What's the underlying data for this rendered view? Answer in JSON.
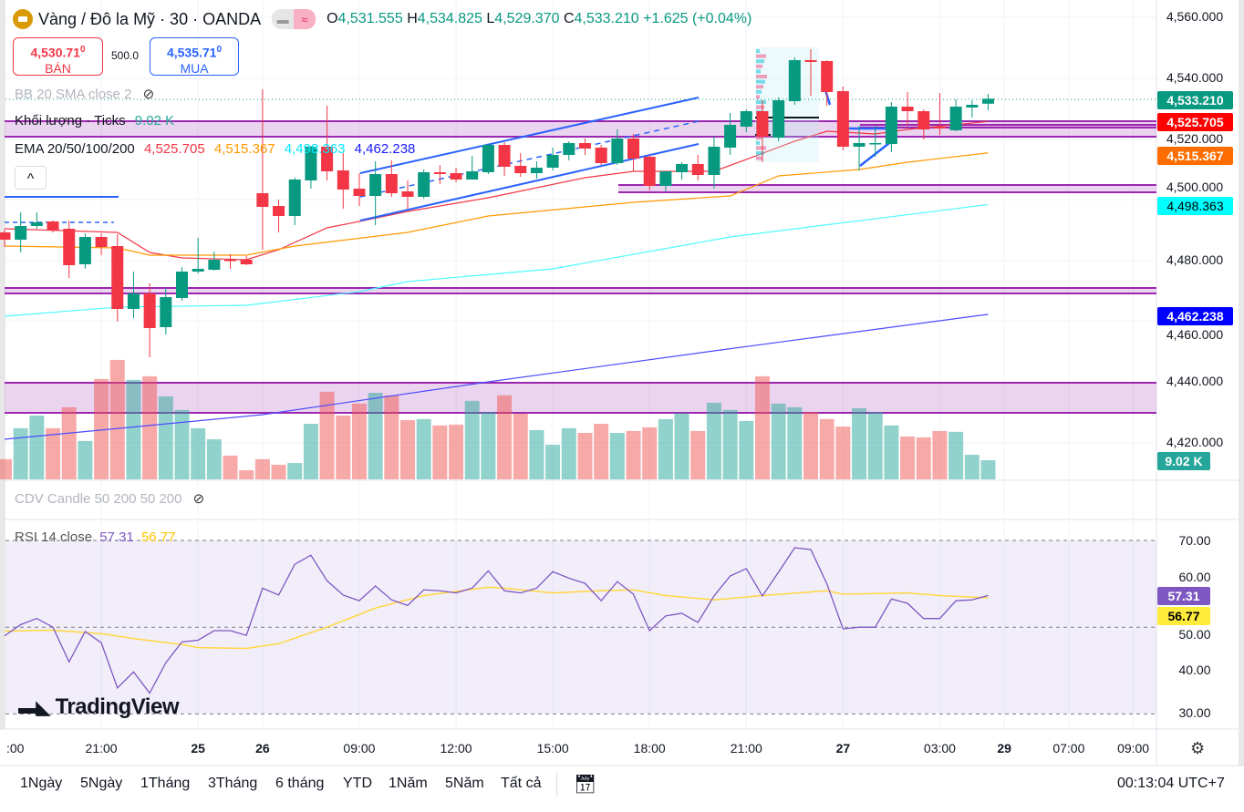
{
  "header": {
    "symbol_title": "Vàng / Đô la Mỹ · 30 · OANDA",
    "toggle_icon": "≈",
    "ohlc": {
      "o_label": "O",
      "o": "4,531.555",
      "h_label": "H",
      "h": "4,534.825",
      "l_label": "L",
      "l": "4,529.370",
      "c_label": "C",
      "c": "4,533.210",
      "change": "+1.625 (+0.04%)"
    }
  },
  "trade": {
    "sell_price": "4,530.71",
    "sell_sup": "0",
    "sell_label": "BÁN",
    "spread": "500.0",
    "buy_price": "4,535.71",
    "buy_sup": "0",
    "buy_label": "MUA"
  },
  "legend": {
    "bb": "BB 20 SMA close 2",
    "volume_label": "Khối lượng · Ticks",
    "volume_value": "9.02 K",
    "ema_label": "EMA 20/50/100/200",
    "ema_values": [
      "4,525.705",
      "4,515.367",
      "4,498.363",
      "4,462.238"
    ],
    "cdv": "CDV Candle 50 200 50 200",
    "rsi_label": "RSI 14 close",
    "rsi_value": "57.31",
    "rsi_signal": "56.77",
    "collapse_icon": "^"
  },
  "price_axis": {
    "ticks": [
      "4,560.000",
      "4,540.000",
      "4,520.000",
      "4,500.000",
      "4,480.000",
      "4,460.000",
      "4,440.000",
      "4,420.000"
    ],
    "tags": [
      {
        "label": "4,533.210",
        "color": "#089981",
        "text": "#ffffff"
      },
      {
        "label": "4,525.705",
        "color": "#ff0000",
        "text": "#ffffff"
      },
      {
        "label": "4,515.367",
        "color": "#ff6d00",
        "text": "#ffffff"
      },
      {
        "label": "4,498.363",
        "color": "#00ffff",
        "text": "#000000"
      },
      {
        "label": "4,462.238",
        "color": "#0000ff",
        "text": "#ffffff"
      },
      {
        "label": "9.02 K",
        "color": "#26a69a",
        "text": "#ffffff"
      }
    ]
  },
  "rsi_axis": {
    "ticks": [
      "70.00",
      "60.00",
      "50.00",
      "40.00",
      "30.00"
    ],
    "tags": [
      {
        "label": "57.31",
        "color": "#7e57c2",
        "text": "#ffffff"
      },
      {
        "label": "56.77",
        "color": "#ffeb3b",
        "text": "#000000"
      }
    ]
  },
  "time_axis": [
    {
      "label": ":00",
      "bar": -0.5
    },
    {
      "label": "21:00",
      "bar": 6
    },
    {
      "label": "25",
      "bar": 12
    },
    {
      "label": "26",
      "bar": 16
    },
    {
      "label": "09:00",
      "bar": 22
    },
    {
      "label": "12:00",
      "bar": 28
    },
    {
      "label": "15:00",
      "bar": 34
    },
    {
      "label": "18:00",
      "bar": 40
    },
    {
      "label": "21:00",
      "bar": 46
    },
    {
      "label": "27",
      "bar": 52
    },
    {
      "label": "03:00",
      "bar": 58
    },
    {
      "label": "29",
      "bar": 62
    },
    {
      "label": "07:00",
      "bar": 66
    },
    {
      "label": "09:00",
      "bar": 70
    }
  ],
  "toolbar": {
    "ranges": [
      "1Ngày",
      "5Ngày",
      "1Tháng",
      "3Tháng",
      "6 tháng",
      "YTD",
      "1Năm",
      "5Năm",
      "Tất cả"
    ],
    "clock": "00:13:04 UTC+7"
  },
  "watermark": "TradingView",
  "chart_data": {
    "type": "candlestick",
    "interval": "30",
    "ylim": [
      4415,
      4562
    ],
    "up_color": "#089981",
    "down_color": "#f23645",
    "candles_ohlc": [
      [
        4489.2,
        4490.1,
        4484.4,
        4486.8
      ],
      [
        4486.8,
        4495.8,
        4482.6,
        4491.3
      ],
      [
        4491.3,
        4495.8,
        4490.4,
        4492.5
      ],
      [
        4492.8,
        4493.1,
        4489.2,
        4489.8
      ],
      [
        4490.4,
        4493.1,
        4474.2,
        4478.4
      ],
      [
        4478.7,
        4488.9,
        4477.2,
        4487.7
      ],
      [
        4487.7,
        4488.9,
        4481.7,
        4484.4
      ],
      [
        4484.7,
        4488.6,
        4459.8,
        4464.0
      ],
      [
        4464.0,
        4476.3,
        4461.0,
        4469.1
      ],
      [
        4469.1,
        4472.4,
        4448.1,
        4457.7
      ],
      [
        4458.0,
        4470.9,
        4455.6,
        4467.9
      ],
      [
        4467.6,
        4477.8,
        4466.7,
        4476.3
      ],
      [
        4476.3,
        4487.4,
        4475.7,
        4477.2
      ],
      [
        4476.9,
        4482.9,
        4476.6,
        4480.2
      ],
      [
        4480.2,
        4482.0,
        4477.2,
        4479.9
      ],
      [
        4480.2,
        4481.4,
        4478.4,
        4478.7
      ],
      [
        4502.1,
        4536.3,
        4483.5,
        4497.6
      ],
      [
        4497.9,
        4500.0,
        4489.2,
        4494.6
      ],
      [
        4494.6,
        4507.2,
        4491.6,
        4506.6
      ],
      [
        4506.3,
        4517.7,
        4503.6,
        4517.4
      ],
      [
        4517.4,
        4530.9,
        4506.3,
        4509.3
      ],
      [
        4509.6,
        4515.3,
        4497.0,
        4503.3
      ],
      [
        4503.6,
        4508.7,
        4497.9,
        4501.2
      ],
      [
        4501.2,
        4512.6,
        4491.6,
        4508.4
      ],
      [
        4508.4,
        4512.9,
        4500.9,
        4502.1
      ],
      [
        4502.7,
        4506.3,
        4497.0,
        4500.9
      ],
      [
        4500.9,
        4509.9,
        4500.3,
        4509.0
      ],
      [
        4509.0,
        4511.4,
        4505.1,
        4508.4
      ],
      [
        4508.7,
        4510.5,
        4505.7,
        4506.6
      ],
      [
        4506.6,
        4514.4,
        4506.6,
        4509.3
      ],
      [
        4509.0,
        4518.3,
        4508.4,
        4518.0
      ],
      [
        4518.0,
        4518.9,
        4507.8,
        4510.8
      ],
      [
        4511.1,
        4515.3,
        4507.5,
        4508.7
      ],
      [
        4508.7,
        4512.6,
        4506.9,
        4510.5
      ],
      [
        4510.5,
        4517.1,
        4509.6,
        4514.7
      ],
      [
        4514.7,
        4519.2,
        4512.9,
        4518.6
      ],
      [
        4518.6,
        4520.1,
        4514.7,
        4516.8
      ],
      [
        4517.1,
        4518.0,
        4511.4,
        4512.0
      ],
      [
        4512.0,
        4523.1,
        4511.4,
        4520.1
      ],
      [
        4520.1,
        4521.6,
        4509.3,
        4513.5
      ],
      [
        4514.1,
        4514.7,
        4503.0,
        4504.5
      ],
      [
        4504.5,
        4509.3,
        4502.7,
        4509.3
      ],
      [
        4509.0,
        4512.3,
        4506.6,
        4511.7
      ],
      [
        4511.7,
        4514.7,
        4506.3,
        4508.1
      ],
      [
        4508.1,
        4520.7,
        4503.6,
        4517.4
      ],
      [
        4517.1,
        4528.5,
        4514.7,
        4524.6
      ],
      [
        4524.0,
        4529.7,
        4522.2,
        4529.1
      ],
      [
        4529.1,
        4532.7,
        4512.3,
        4520.7
      ],
      [
        4520.4,
        4533.6,
        4519.2,
        4532.7
      ],
      [
        4532.4,
        4546.8,
        4531.2,
        4545.9
      ],
      [
        4545.9,
        4549.5,
        4534.2,
        4545.3
      ],
      [
        4545.6,
        4545.9,
        4530.9,
        4535.4
      ],
      [
        4535.7,
        4537.2,
        4516.2,
        4517.4
      ],
      [
        4517.4,
        4524.3,
        4509.6,
        4518.6
      ],
      [
        4518.3,
        4524.3,
        4514.1,
        4518.6
      ],
      [
        4518.3,
        4532.1,
        4515.6,
        4530.6
      ],
      [
        4530.6,
        4535.4,
        4524.3,
        4529.1
      ],
      [
        4529.1,
        4529.7,
        4519.8,
        4523.1
      ],
      [
        4524.0,
        4535.1,
        4521.3,
        4523.4
      ],
      [
        4522.8,
        4533.0,
        4522.5,
        4530.6
      ],
      [
        4530.3,
        4532.7,
        4527.0,
        4531.2
      ],
      [
        4531.555,
        4534.825,
        4529.37,
        4533.21
      ]
    ],
    "volume_k": [
      9.5,
      24.1,
      30.1,
      24.1,
      34.0,
      18.1,
      47.3,
      56.3,
      46.9,
      48.6,
      39.1,
      32.7,
      24.1,
      18.9,
      11.2,
      4.3,
      9.5,
      6.9,
      7.7,
      26.2,
      41.3,
      30.1,
      35.7,
      40.8,
      39.6,
      27.9,
      28.4,
      25.4,
      25.8,
      37.0,
      31.8,
      39.6,
      31.0,
      23.2,
      16.3,
      24.1,
      21.9,
      26.2,
      21.9,
      22.8,
      24.5,
      28.4,
      31.2,
      22.8,
      36.1,
      32.7,
      27.5,
      48.6,
      35.7,
      34.0,
      31.8,
      28.4,
      24.9,
      33.5,
      31.8,
      25.4,
      20.2,
      19.8,
      22.8,
      22.4,
      11.6,
      9.02
    ],
    "ema": [
      {
        "name": "EMA 20",
        "color": "#f23645",
        "points": [
          [
            0,
            4490.4
          ],
          [
            7,
            4489.2
          ],
          [
            9,
            4482.6
          ],
          [
            11,
            4480.8
          ],
          [
            15,
            4480.2
          ],
          [
            17,
            4483.5
          ],
          [
            20,
            4490.7
          ],
          [
            22,
            4492.8
          ],
          [
            25,
            4496.1
          ],
          [
            30,
            4500.6
          ],
          [
            36,
            4507.2
          ],
          [
            39,
            4509.3
          ],
          [
            44,
            4509.3
          ],
          [
            46,
            4513.2
          ],
          [
            49,
            4519.2
          ],
          [
            51,
            4522.5
          ],
          [
            54,
            4521.6
          ],
          [
            56,
            4523.1
          ],
          [
            61,
            4525.705
          ]
        ]
      },
      {
        "name": "EMA 50",
        "color": "#ff9800",
        "points": [
          [
            0,
            4484.7
          ],
          [
            7,
            4484.1
          ],
          [
            9,
            4481.7
          ],
          [
            15,
            4481.7
          ],
          [
            18,
            4484.7
          ],
          [
            25,
            4489.2
          ],
          [
            30,
            4494.6
          ],
          [
            39,
            4499.1
          ],
          [
            45,
            4501.2
          ],
          [
            48,
            4507.8
          ],
          [
            53,
            4509.9
          ],
          [
            56,
            4512.3
          ],
          [
            61,
            4515.367
          ]
        ]
      },
      {
        "name": "EMA 100",
        "color": "#4dfbff",
        "points": [
          [
            0,
            4461.6
          ],
          [
            7,
            4464.6
          ],
          [
            15,
            4465.2
          ],
          [
            22,
            4469.7
          ],
          [
            25,
            4473.0
          ],
          [
            34,
            4477.2
          ],
          [
            45,
            4487.7
          ],
          [
            61,
            4498.363
          ]
        ]
      },
      {
        "name": "EMA 200",
        "color": "#4b4bff",
        "points": [
          [
            0,
            4421.1
          ],
          [
            16,
            4429.2
          ],
          [
            30,
            4440.0
          ],
          [
            44,
            4450.2
          ],
          [
            61,
            4462.238
          ]
        ]
      }
    ],
    "rsi": {
      "ylim": [
        28,
        72
      ],
      "levels": [
        70,
        50,
        30
      ],
      "values": [
        48,
        50.6,
        52,
        50,
        42,
        49,
        46.4,
        36,
        39.7,
        34.8,
        41.8,
        46.6,
        47,
        49.2,
        49.2,
        48.1,
        59,
        57.4,
        64.5,
        66.6,
        60.7,
        57.4,
        56.1,
        59.5,
        56.3,
        55,
        58.6,
        58.4,
        57.9,
        59,
        63,
        58.4,
        57.9,
        59,
        62.8,
        61.3,
        60.1,
        56.1,
        60.5,
        57.6,
        49.2,
        52.6,
        53.2,
        51.1,
        57.2,
        61.8,
        63.5,
        57.2,
        62.7,
        68.3,
        67.9,
        60,
        49.6,
        50,
        50,
        56.5,
        55.5,
        52,
        52,
        56.1,
        56.3,
        57.31
      ],
      "signal": [
        [
          0,
          49.1
        ],
        [
          3,
          49.3
        ],
        [
          6,
          48.5
        ],
        [
          8,
          47.4
        ],
        [
          11,
          46.0
        ],
        [
          12,
          45.3
        ],
        [
          15,
          45.1
        ],
        [
          17,
          46.2
        ],
        [
          20,
          50
        ],
        [
          23,
          54.4
        ],
        [
          26,
          57.3
        ],
        [
          30,
          59.2
        ],
        [
          31,
          59
        ],
        [
          34,
          57.9
        ],
        [
          37,
          58.4
        ],
        [
          39,
          58.6
        ],
        [
          41,
          57.3
        ],
        [
          44,
          56.3
        ],
        [
          47,
          57.3
        ],
        [
          51,
          58.4
        ],
        [
          52,
          57.6
        ],
        [
          56,
          57.9
        ],
        [
          58,
          57.3
        ],
        [
          61,
          56.77
        ]
      ],
      "line_color": "#7e57c2",
      "signal_color": "#ffd740"
    }
  }
}
